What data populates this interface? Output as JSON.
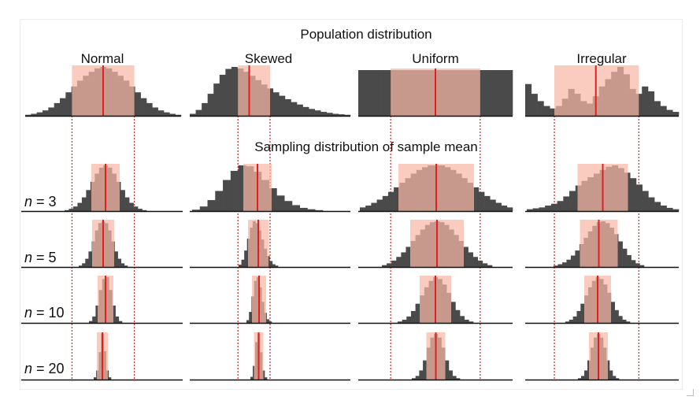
{
  "titles": {
    "population": "Population distribution",
    "sampling": "Sampling distribution of sample mean"
  },
  "columns": [
    {
      "label": "Normal"
    },
    {
      "label": "Skewed"
    },
    {
      "label": "Uniform"
    },
    {
      "label": "Irregular"
    }
  ],
  "sample_sizes": [
    {
      "var": "n",
      "value": "3"
    },
    {
      "var": "n",
      "value": "5"
    },
    {
      "var": "n",
      "value": "10"
    },
    {
      "var": "n",
      "value": "20"
    }
  ],
  "colors": {
    "bars": "#4a4a4a",
    "highlight_band": "#f6b8a6",
    "mean_line": "#e02020",
    "dotted_guides": "#e02020",
    "baseline": "#111111"
  },
  "chart_data": [
    {
      "type": "bar",
      "row": "population",
      "column": "Normal",
      "values": [
        0.02,
        0.04,
        0.07,
        0.11,
        0.17,
        0.26,
        0.36,
        0.48,
        0.6,
        0.72,
        0.82,
        0.9,
        0.97,
        1.0,
        0.97,
        0.9,
        0.82,
        0.72,
        0.6,
        0.48,
        0.36,
        0.26,
        0.17,
        0.11,
        0.07,
        0.04,
        0.02
      ],
      "mean_position": 0.5,
      "band": [
        0.3,
        0.7
      ]
    },
    {
      "type": "bar",
      "row": "population",
      "column": "Skewed",
      "values": [
        0.04,
        0.12,
        0.26,
        0.45,
        0.66,
        0.84,
        0.96,
        1.0,
        0.97,
        0.9,
        0.82,
        0.73,
        0.64,
        0.56,
        0.48,
        0.41,
        0.34,
        0.28,
        0.23,
        0.18,
        0.14,
        0.11,
        0.08,
        0.06,
        0.04,
        0.03,
        0.02
      ],
      "mean_position": 0.37,
      "band": [
        0.3,
        0.5
      ]
    },
    {
      "type": "bar",
      "row": "population",
      "column": "Uniform",
      "values": [
        1,
        1,
        1,
        1,
        1,
        1,
        1,
        1,
        1,
        1,
        1,
        1,
        1,
        1,
        1,
        1,
        1,
        1,
        1,
        1,
        1,
        1,
        1,
        1,
        1,
        1,
        1
      ],
      "mean_position": 0.5,
      "band": [
        0.21,
        0.79
      ]
    },
    {
      "type": "bar",
      "row": "population",
      "column": "Irregular",
      "values": [
        0.65,
        0.45,
        0.3,
        0.2,
        0.15,
        0.2,
        0.35,
        0.55,
        0.45,
        0.3,
        0.25,
        0.4,
        0.6,
        0.75,
        0.9,
        1.0,
        0.85,
        0.55,
        0.45,
        0.6,
        0.5,
        0.3,
        0.2,
        0.12,
        0.08
      ],
      "mean_position": 0.46,
      "band": [
        0.19,
        0.74
      ]
    },
    {
      "type": "bar",
      "row": "n = 3",
      "column": "Normal",
      "values": [
        0.02,
        0.05,
        0.1,
        0.18,
        0.3,
        0.46,
        0.64,
        0.82,
        0.95,
        1.0,
        0.95,
        0.82,
        0.64,
        0.46,
        0.3,
        0.18,
        0.1,
        0.05,
        0.02
      ]
    },
    {
      "type": "bar",
      "row": "n = 3",
      "column": "Skewed",
      "values": [
        0.03,
        0.1,
        0.24,
        0.44,
        0.68,
        0.88,
        1.0,
        0.98,
        0.86,
        0.68,
        0.5,
        0.34,
        0.22,
        0.13,
        0.07,
        0.04,
        0.02
      ]
    },
    {
      "type": "bar",
      "row": "n = 3",
      "column": "Uniform",
      "values": [
        0.08,
        0.12,
        0.18,
        0.25,
        0.33,
        0.42,
        0.52,
        0.62,
        0.72,
        0.82,
        0.9,
        0.96,
        1.0,
        1.0,
        1.0,
        0.96,
        0.9,
        0.82,
        0.72,
        0.62,
        0.52,
        0.42,
        0.33,
        0.25,
        0.18,
        0.12,
        0.08
      ]
    },
    {
      "type": "bar",
      "row": "n = 3",
      "column": "Irregular",
      "values": [
        0.04,
        0.06,
        0.08,
        0.12,
        0.16,
        0.22,
        0.32,
        0.44,
        0.56,
        0.66,
        0.74,
        0.82,
        0.9,
        0.97,
        1.0,
        0.94,
        0.84,
        0.72,
        0.58,
        0.44,
        0.3,
        0.2,
        0.12,
        0.07,
        0.04
      ]
    },
    {
      "type": "bar",
      "row": "n = 5",
      "column": "Normal",
      "values": [
        0.03,
        0.08,
        0.18,
        0.34,
        0.56,
        0.8,
        0.96,
        1.0,
        0.96,
        0.8,
        0.56,
        0.34,
        0.18,
        0.08,
        0.03
      ]
    },
    {
      "type": "bar",
      "row": "n = 5",
      "column": "Skewed",
      "values": [
        0.05,
        0.16,
        0.36,
        0.62,
        0.86,
        1.0,
        0.96,
        0.8,
        0.6,
        0.4,
        0.24,
        0.13,
        0.06,
        0.03
      ]
    },
    {
      "type": "bar",
      "row": "n = 5",
      "column": "Uniform",
      "values": [
        0.04,
        0.08,
        0.14,
        0.22,
        0.32,
        0.44,
        0.57,
        0.7,
        0.82,
        0.92,
        0.98,
        1.0,
        0.98,
        0.92,
        0.82,
        0.7,
        0.57,
        0.44,
        0.32,
        0.22,
        0.14,
        0.08,
        0.04
      ]
    },
    {
      "type": "bar",
      "row": "n = 5",
      "column": "Irregular",
      "values": [
        0.03,
        0.06,
        0.1,
        0.16,
        0.25,
        0.36,
        0.5,
        0.64,
        0.78,
        0.9,
        0.98,
        1.0,
        0.96,
        0.86,
        0.72,
        0.56,
        0.4,
        0.26,
        0.15,
        0.08,
        0.04
      ]
    },
    {
      "type": "bar",
      "row": "n = 10",
      "column": "Normal",
      "values": [
        0.04,
        0.14,
        0.38,
        0.72,
        0.96,
        1.0,
        0.72,
        0.38,
        0.14,
        0.04
      ]
    },
    {
      "type": "bar",
      "row": "n = 10",
      "column": "Skewed",
      "values": [
        0.06,
        0.24,
        0.58,
        0.92,
        1.0,
        0.78,
        0.46,
        0.22,
        0.08,
        0.03
      ]
    },
    {
      "type": "bar",
      "row": "n = 10",
      "column": "Uniform",
      "values": [
        0.03,
        0.07,
        0.14,
        0.26,
        0.42,
        0.6,
        0.78,
        0.92,
        1.0,
        0.96,
        0.84,
        0.66,
        0.46,
        0.28,
        0.15,
        0.07,
        0.03
      ]
    },
    {
      "type": "bar",
      "row": "n = 10",
      "column": "Irregular",
      "values": [
        0.03,
        0.07,
        0.14,
        0.26,
        0.42,
        0.6,
        0.78,
        0.92,
        1.0,
        0.96,
        0.84,
        0.66,
        0.46,
        0.28,
        0.15,
        0.07,
        0.03
      ]
    },
    {
      "type": "bar",
      "row": "n = 20",
      "column": "Normal",
      "values": [
        0.05,
        0.2,
        0.6,
        1.0,
        0.62,
        0.2,
        0.05
      ]
    },
    {
      "type": "bar",
      "row": "n = 20",
      "column": "Skewed",
      "values": [
        0.06,
        0.3,
        0.82,
        1.0,
        0.6,
        0.2,
        0.05
      ]
    },
    {
      "type": "bar",
      "row": "n = 20",
      "column": "Uniform",
      "values": [
        0.03,
        0.08,
        0.2,
        0.42,
        0.7,
        0.92,
        1.0,
        0.92,
        0.7,
        0.42,
        0.2,
        0.08,
        0.03
      ]
    },
    {
      "type": "bar",
      "row": "n = 20",
      "column": "Irregular",
      "values": [
        0.03,
        0.08,
        0.2,
        0.42,
        0.7,
        0.92,
        1.0,
        0.92,
        0.7,
        0.42,
        0.2,
        0.08,
        0.03
      ]
    }
  ]
}
